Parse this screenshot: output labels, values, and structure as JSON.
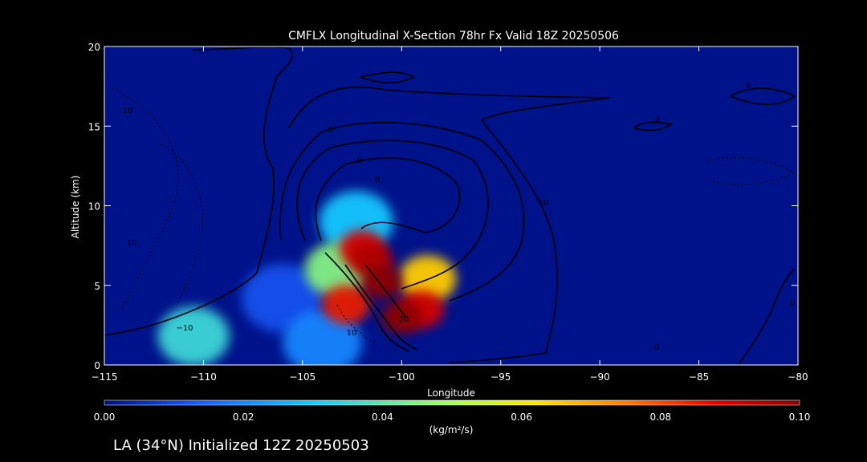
{
  "chart_data": {
    "type": "heatmap",
    "title": "CMFLX Longitudinal X-Section 78hr  Fx Valid 18Z 20250506",
    "xlabel": "Longitude",
    "ylabel": "Altitude (km)",
    "xlim": [
      -115,
      -80
    ],
    "ylim": [
      0,
      20
    ],
    "xticks": [
      -115,
      -110,
      -105,
      -100,
      -95,
      -90,
      -85,
      -80
    ],
    "xtick_labels": [
      "−115",
      "−110",
      "−105",
      "−100",
      "−95",
      "−90",
      "−85",
      "−80"
    ],
    "yticks": [
      0,
      5,
      10,
      15,
      20
    ],
    "ytick_labels": [
      "0",
      "5",
      "10",
      "15",
      "20"
    ],
    "colorbar": {
      "min": 0.0,
      "max": 0.1,
      "ticks": [
        "0.00",
        "0.02",
        "0.04",
        "0.06",
        "0.08",
        "0.10"
      ],
      "unit_label": "(kg/m²/s)",
      "colors": [
        "#00127a",
        "#1a5cff",
        "#18c8ff",
        "#a8ff5a",
        "#ffe600",
        "#ff7a00",
        "#e00000",
        "#8a0000"
      ]
    },
    "background_color": "#00128a",
    "cells": [
      {
        "lon": -102.0,
        "alt": 7.3,
        "value": 0.09
      },
      {
        "lon": -101.5,
        "alt": 6.5,
        "value": 0.095
      },
      {
        "lon": -101.0,
        "alt": 5.2,
        "value": 0.1
      },
      {
        "lon": -100.0,
        "alt": 3.0,
        "value": 0.1
      },
      {
        "lon": -99.0,
        "alt": 3.5,
        "value": 0.09
      },
      {
        "lon": -98.7,
        "alt": 5.4,
        "value": 0.065
      },
      {
        "lon": -102.8,
        "alt": 3.8,
        "value": 0.085
      },
      {
        "lon": -102.3,
        "alt": 9.0,
        "value": 0.03
      },
      {
        "lon": -103.2,
        "alt": 6.0,
        "value": 0.045
      },
      {
        "lon": -106.0,
        "alt": 4.2,
        "value": 0.012
      },
      {
        "lon": -110.5,
        "alt": 1.8,
        "value": 0.035
      },
      {
        "lon": -104.0,
        "alt": 1.4,
        "value": 0.02
      }
    ],
    "contour_labels": [
      "0",
      "0",
      "0",
      "10",
      "20",
      "10",
      "10",
      "10",
      "0",
      "0",
      "0",
      "0",
      "−10",
      "0"
    ]
  },
  "footer": {
    "init_text": "LA (34°N) Initialized 12Z 20250503"
  }
}
